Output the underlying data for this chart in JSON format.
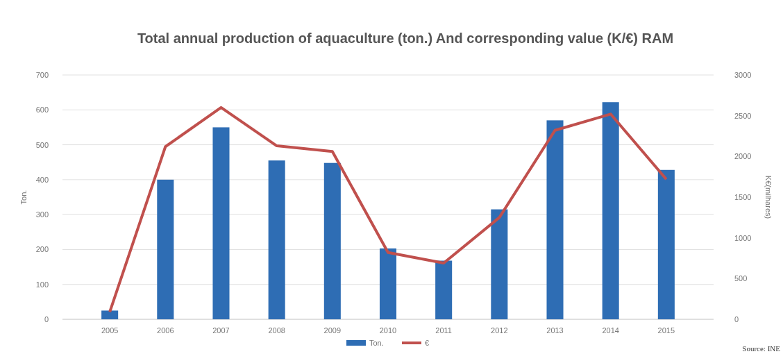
{
  "chart_data": {
    "type": "bar",
    "title": "Total annual production of aquaculture (ton.) And corresponding value (K/€) RAM",
    "ylabel": "Ton.",
    "y2label": "K€(milhares)",
    "annotations": [
      "Source: INE"
    ],
    "categories": [
      "2005",
      "2006",
      "2007",
      "2008",
      "2009",
      "2010",
      "2011",
      "2012",
      "2013",
      "2014",
      "2015"
    ],
    "series": [
      {
        "name": "Ton.",
        "color": "#2e6db4",
        "values": [
          25,
          400,
          550,
          455,
          448,
          203,
          168,
          315,
          570,
          622,
          428
        ]
      },
      {
        "name": "€",
        "type": "line",
        "axis": "y2",
        "color": "#c0504d",
        "values": [
          90,
          2120,
          2600,
          2130,
          2060,
          820,
          690,
          1250,
          2320,
          2520,
          1720
        ]
      }
    ],
    "ylim": [
      0,
      700
    ],
    "yticks": [
      0,
      100,
      200,
      300,
      400,
      500,
      600,
      700
    ],
    "y2lim": [
      0,
      3000
    ],
    "y2ticks": [
      0,
      500,
      1000,
      1500,
      2000,
      2500,
      3000
    ],
    "grid": "y",
    "legend": "bottom",
    "marker": "none",
    "line_style": "solid"
  }
}
